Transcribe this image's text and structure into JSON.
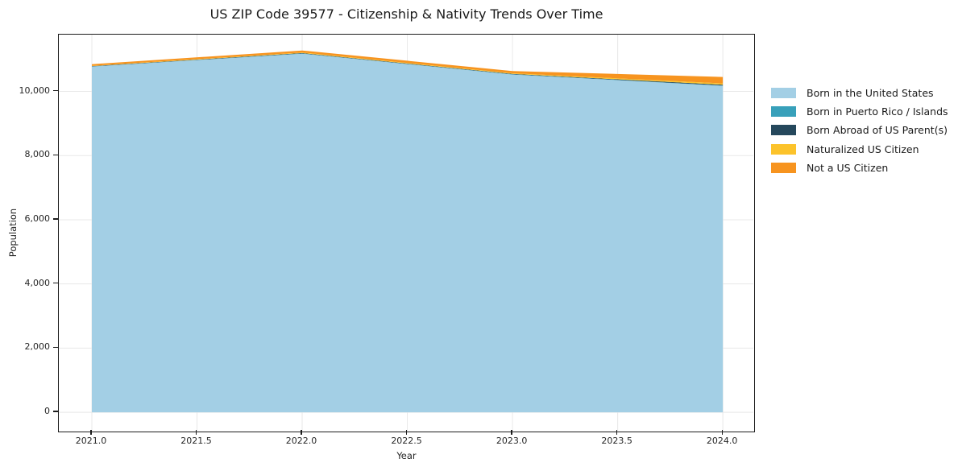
{
  "page": {
    "title": "US ZIP Code 39577 - Citizenship & Nativity Trends Over Time"
  },
  "chart_data": {
    "type": "area",
    "stacked": true,
    "title": "US ZIP Code 39577 - Citizenship & Nativity Trends Over Time",
    "xlabel": "Year",
    "ylabel": "Population",
    "x": [
      2021,
      2022,
      2023,
      2024
    ],
    "series": [
      {
        "name": "Born in the United States",
        "color": "#a3cfe5",
        "values": [
          10775,
          11175,
          10525,
          10175
        ]
      },
      {
        "name": "Born in Puerto Rico / Islands",
        "color": "#38a0ba",
        "values": [
          5,
          8,
          8,
          10
        ]
      },
      {
        "name": "Born Abroad of US Parent(s)",
        "color": "#25485c",
        "values": [
          8,
          12,
          12,
          25
        ]
      },
      {
        "name": "Naturalized US Citizen",
        "color": "#fcc32b",
        "values": [
          12,
          18,
          20,
          40
        ]
      },
      {
        "name": "Not a US Citizen",
        "color": "#f7941f",
        "values": [
          50,
          62,
          70,
          200
        ]
      }
    ],
    "xlim": [
      2020.843,
      2024.145
    ],
    "ylim": [
      -575,
      11770
    ],
    "xticks": [
      {
        "value": 2021.0,
        "label": "2021.0"
      },
      {
        "value": 2021.5,
        "label": "2021.5"
      },
      {
        "value": 2022.0,
        "label": "2022.0"
      },
      {
        "value": 2022.5,
        "label": "2022.5"
      },
      {
        "value": 2023.0,
        "label": "2023.0"
      },
      {
        "value": 2023.5,
        "label": "2023.5"
      },
      {
        "value": 2024.0,
        "label": "2024.0"
      }
    ],
    "yticks": [
      {
        "value": 0,
        "label": "0"
      },
      {
        "value": 2000,
        "label": "2,000"
      },
      {
        "value": 4000,
        "label": "4,000"
      },
      {
        "value": 6000,
        "label": "6,000"
      },
      {
        "value": 8000,
        "label": "8,000"
      },
      {
        "value": 10000,
        "label": "10,000"
      }
    ],
    "grid": true,
    "grid_color": "#e8e8e8",
    "spine_color": "#1c1c1c",
    "text_color": "#262626",
    "background": "#ffffff",
    "legend_position": "right"
  }
}
